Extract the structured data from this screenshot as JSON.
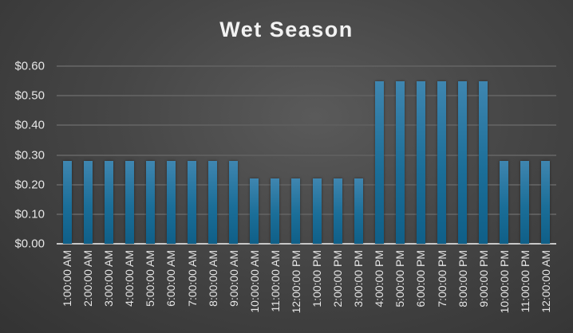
{
  "chart_data": {
    "type": "bar",
    "title": "Wet Season",
    "xlabel": "",
    "ylabel": "",
    "ylim": [
      0,
      0.6
    ],
    "grid": true,
    "legend": null,
    "yticks": [
      "$0.00",
      "$0.10",
      "$0.20",
      "$0.30",
      "$0.40",
      "$0.50",
      "$0.60"
    ],
    "categories": [
      "1:00:00 AM",
      "2:00:00 AM",
      "3:00:00 AM",
      "4:00:00 AM",
      "5:00:00 AM",
      "6:00:00 AM",
      "7:00:00 AM",
      "8:00:00 AM",
      "9:00:00 AM",
      "10:00:00 AM",
      "11:00:00 AM",
      "12:00:00 PM",
      "1:00:00 PM",
      "2:00:00 PM",
      "3:00:00 PM",
      "4:00:00 PM",
      "5:00:00 PM",
      "6:00:00 PM",
      "7:00:00 PM",
      "8:00:00 PM",
      "9:00:00 PM",
      "10:00:00 PM",
      "11:00:00 PM",
      "12:00:00 AM"
    ],
    "values": [
      0.28,
      0.28,
      0.28,
      0.28,
      0.28,
      0.28,
      0.28,
      0.28,
      0.28,
      0.22,
      0.22,
      0.22,
      0.22,
      0.22,
      0.22,
      0.55,
      0.55,
      0.55,
      0.55,
      0.55,
      0.55,
      0.28,
      0.28,
      0.28
    ],
    "bar_color": "#1b6e98",
    "background_color": "#404040"
  }
}
